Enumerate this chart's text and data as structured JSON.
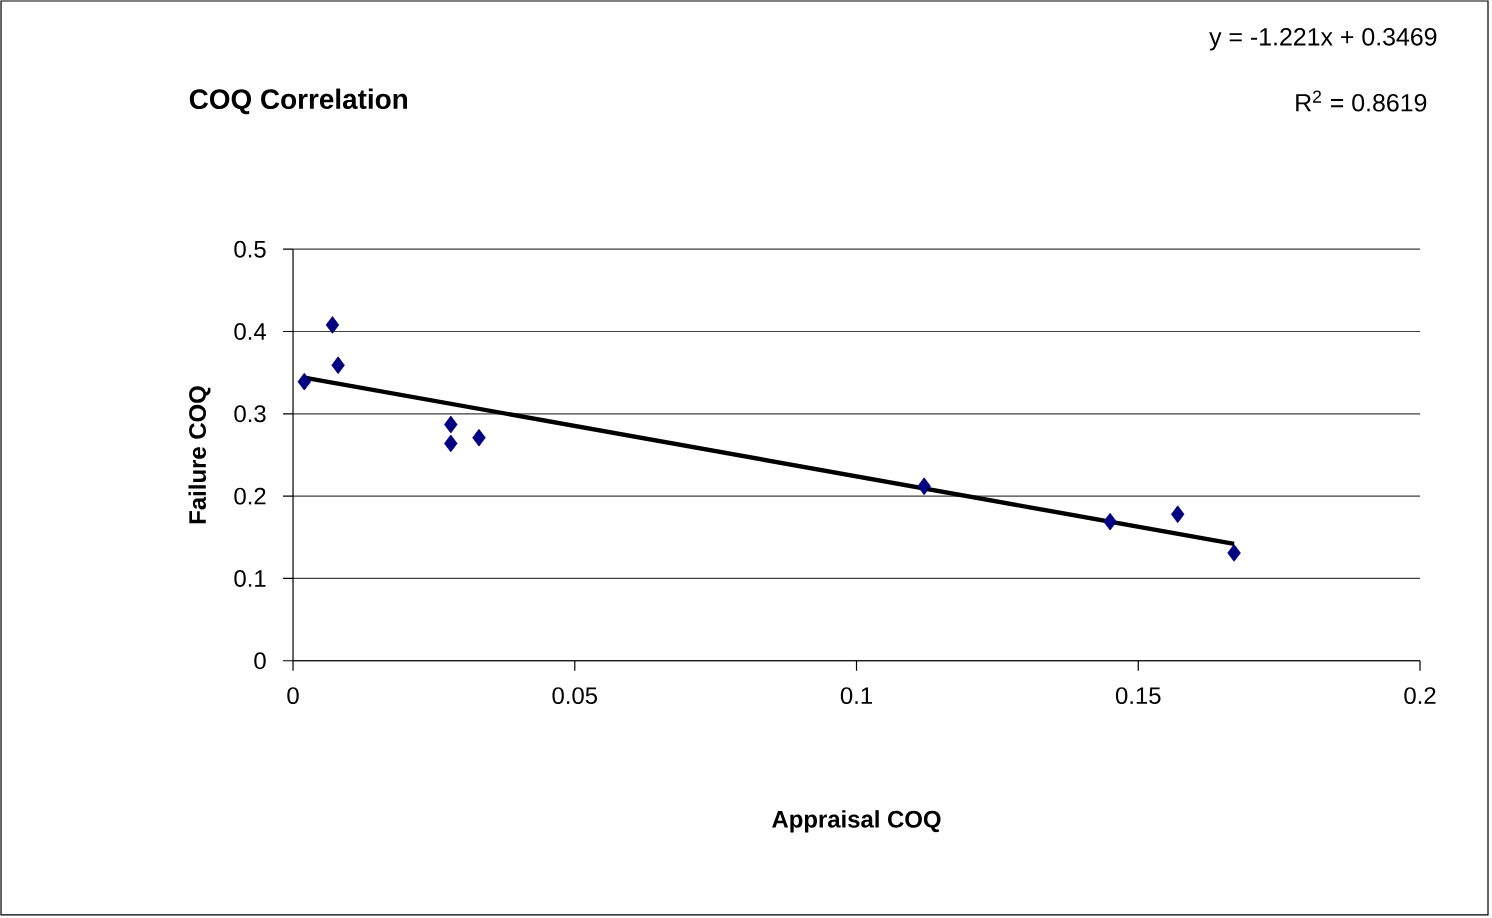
{
  "chart_data": {
    "type": "scatter",
    "title": "COQ Correlation",
    "xlabel": "Appraisal COQ",
    "ylabel": "Failure COQ",
    "annotations": [
      "y = -1.221x + 0.3469",
      "R$^{2}$ = 0.8619"
    ],
    "xlim": [
      0,
      0.2
    ],
    "ylim": [
      0,
      0.5
    ],
    "xticks": [
      0,
      0.05,
      0.1,
      0.15,
      0.2
    ],
    "yticks": [
      0,
      0.1,
      0.2,
      0.3,
      0.4,
      0.5
    ],
    "grid": "y",
    "series": [
      {
        "type": "scatter",
        "color": "#000080",
        "marker": "diamond",
        "x": [
          0.002,
          0.007,
          0.008,
          0.028,
          0.028,
          0.033,
          0.112,
          0.145,
          0.157,
          0.167
        ],
        "values": [
          0.339,
          0.408,
          0.359,
          0.287,
          0.264,
          0.271,
          0.212,
          0.169,
          0.178,
          0.131
        ]
      },
      {
        "type": "line",
        "color": "#000000",
        "marker": "none",
        "x": [
          0.002,
          0.167
        ],
        "values": [
          0.344,
          0.142
        ]
      }
    ]
  }
}
